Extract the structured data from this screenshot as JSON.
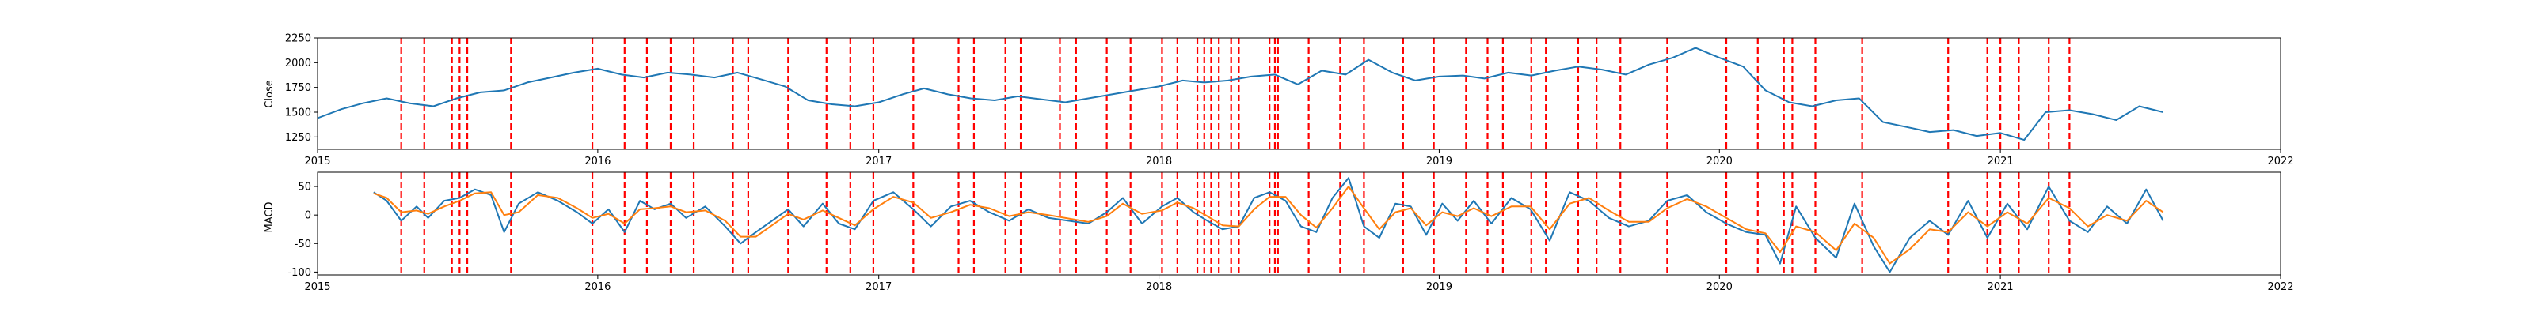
{
  "chart_data": [
    {
      "type": "line",
      "ylabel": "Close",
      "xlim": [
        "2015-01-01",
        "2022-01-01"
      ],
      "ylim": [
        1125,
        2250
      ],
      "yticks": [
        1250,
        1500,
        1750,
        2000,
        2250
      ],
      "xticks": [
        "2015",
        "2016",
        "2017",
        "2018",
        "2019",
        "2020",
        "2021",
        "2022"
      ],
      "grid": false,
      "series": [
        {
          "color": "#1f77b4",
          "x": [
            "2015-01-01",
            "2015-02-01",
            "2015-03-01",
            "2015-04-01",
            "2015-05-01",
            "2015-06-01",
            "2015-07-01",
            "2015-08-01",
            "2015-09-01",
            "2015-10-01",
            "2015-11-01",
            "2015-12-01",
            "2016-01-01",
            "2016-02-01",
            "2016-03-01",
            "2016-04-01",
            "2016-05-01",
            "2016-06-01",
            "2016-07-01",
            "2016-08-01",
            "2016-09-01",
            "2016-10-01",
            "2016-11-01",
            "2016-12-01",
            "2017-01-01",
            "2017-02-01",
            "2017-03-01",
            "2017-04-01",
            "2017-05-01",
            "2017-06-01",
            "2017-07-01",
            "2017-08-01",
            "2017-09-01",
            "2017-10-01",
            "2017-11-01",
            "2017-12-01",
            "2018-01-01",
            "2018-02-01",
            "2018-03-01",
            "2018-04-01",
            "2018-05-01",
            "2018-06-01",
            "2018-07-01",
            "2018-08-01",
            "2018-09-01",
            "2018-10-01",
            "2018-11-01",
            "2018-12-01",
            "2019-01-01",
            "2019-02-01",
            "2019-03-01",
            "2019-04-01",
            "2019-05-01",
            "2019-06-01",
            "2019-07-01",
            "2019-08-01",
            "2019-09-01",
            "2019-10-01",
            "2019-11-01",
            "2019-12-01",
            "2020-01-01",
            "2020-02-01",
            "2020-03-01",
            "2020-04-01",
            "2020-05-01",
            "2020-06-01",
            "2020-07-01",
            "2020-08-01",
            "2020-09-01",
            "2020-10-01",
            "2020-11-01",
            "2020-12-01",
            "2021-01-01",
            "2021-02-01",
            "2021-03-01",
            "2021-04-01",
            "2021-05-01",
            "2021-06-01",
            "2021-07-01",
            "2021-08-01"
          ],
          "y": [
            1440,
            1530,
            1590,
            1640,
            1590,
            1560,
            1640,
            1700,
            1720,
            1800,
            1850,
            1900,
            1940,
            1880,
            1850,
            1900,
            1880,
            1850,
            1900,
            1830,
            1760,
            1620,
            1580,
            1560,
            1600,
            1680,
            1740,
            1680,
            1640,
            1620,
            1660,
            1630,
            1600,
            1640,
            1680,
            1720,
            1760,
            1820,
            1800,
            1820,
            1860,
            1880,
            1780,
            1920,
            1880,
            2030,
            1900,
            1820,
            1860,
            1870,
            1840,
            1900,
            1870,
            1920,
            1960,
            1930,
            1880,
            1980,
            2050,
            2150,
            2050,
            1960,
            1720,
            1600,
            1560,
            1620,
            1640,
            1400,
            1350,
            1300,
            1320,
            1260,
            1290,
            1220,
            1500,
            1520,
            1480,
            1420,
            1560,
            1500
          ]
        }
      ],
      "vlines": [
        "2015-04-20",
        "2015-05-20",
        "2015-06-25",
        "2015-07-05",
        "2015-07-15",
        "2015-09-10",
        "2015-12-25",
        "2016-02-05",
        "2016-03-05",
        "2016-04-05",
        "2016-05-05",
        "2016-06-25",
        "2016-07-15",
        "2016-09-05",
        "2016-10-25",
        "2016-11-25",
        "2016-12-25",
        "2017-02-15",
        "2017-04-15",
        "2017-05-05",
        "2017-06-15",
        "2017-07-05",
        "2017-08-25",
        "2017-09-15",
        "2017-10-25",
        "2017-11-25",
        "2018-01-05",
        "2018-01-25",
        "2018-02-20",
        "2018-03-01",
        "2018-03-10",
        "2018-03-20",
        "2018-04-05",
        "2018-04-15",
        "2018-05-25",
        "2018-06-01",
        "2018-06-05",
        "2018-07-15",
        "2018-08-25",
        "2018-09-25",
        "2018-11-15",
        "2018-12-25",
        "2019-02-05",
        "2019-03-05",
        "2019-03-25",
        "2019-05-01",
        "2019-05-20",
        "2019-07-01",
        "2019-07-25",
        "2019-08-25",
        "2019-10-25",
        "2020-01-10",
        "2020-02-20",
        "2020-03-25",
        "2020-04-05",
        "2020-05-05",
        "2020-07-05",
        "2020-10-25",
        "2020-12-15",
        "2021-01-01",
        "2021-01-25",
        "2021-03-05",
        "2021-04-01"
      ],
      "vline_color": "#ff0000"
    },
    {
      "type": "line",
      "ylabel": "MACD",
      "xlim": [
        "2015-01-01",
        "2022-01-01"
      ],
      "ylim": [
        -105,
        75
      ],
      "yticks": [
        -100,
        -50,
        0,
        50
      ],
      "xticks": [
        "2015",
        "2016",
        "2017",
        "2018",
        "2019",
        "2020",
        "2021",
        "2022"
      ],
      "grid": false,
      "series": [
        {
          "color": "#1f77b4",
          "x": [
            "2015-03-15",
            "2015-04-01",
            "2015-04-20",
            "2015-05-10",
            "2015-05-25",
            "2015-06-15",
            "2015-07-05",
            "2015-07-25",
            "2015-08-15",
            "2015-09-01",
            "2015-09-20",
            "2015-10-15",
            "2015-11-10",
            "2015-12-05",
            "2015-12-25",
            "2016-01-15",
            "2016-02-05",
            "2016-02-25",
            "2016-03-15",
            "2016-04-05",
            "2016-04-25",
            "2016-05-20",
            "2016-06-15",
            "2016-07-05",
            "2016-07-25",
            "2016-08-15",
            "2016-09-05",
            "2016-09-25",
            "2016-10-20",
            "2016-11-10",
            "2016-12-01",
            "2016-12-25",
            "2017-01-20",
            "2017-02-15",
            "2017-03-10",
            "2017-04-05",
            "2017-04-30",
            "2017-05-25",
            "2017-06-20",
            "2017-07-15",
            "2017-08-10",
            "2017-09-05",
            "2017-10-01",
            "2017-10-25",
            "2017-11-15",
            "2017-12-10",
            "2018-01-05",
            "2018-01-25",
            "2018-02-15",
            "2018-03-05",
            "2018-03-25",
            "2018-04-15",
            "2018-05-05",
            "2018-05-25",
            "2018-06-15",
            "2018-07-05",
            "2018-07-25",
            "2018-08-15",
            "2018-09-05",
            "2018-09-25",
            "2018-10-15",
            "2018-11-05",
            "2018-11-25",
            "2018-12-15",
            "2019-01-05",
            "2019-01-25",
            "2019-02-15",
            "2019-03-10",
            "2019-04-05",
            "2019-04-30",
            "2019-05-25",
            "2019-06-20",
            "2019-07-15",
            "2019-08-10",
            "2019-09-05",
            "2019-10-01",
            "2019-10-25",
            "2019-11-20",
            "2019-12-15",
            "2020-01-10",
            "2020-02-05",
            "2020-03-01",
            "2020-03-20",
            "2020-04-10",
            "2020-05-05",
            "2020-06-01",
            "2020-06-25",
            "2020-07-20",
            "2020-08-10",
            "2020-09-05",
            "2020-10-01",
            "2020-10-25",
            "2020-11-20",
            "2020-12-15",
            "2021-01-10",
            "2021-02-05",
            "2021-03-05",
            "2021-04-01",
            "2021-04-25",
            "2021-05-20",
            "2021-06-15",
            "2021-07-10",
            "2021-08-01"
          ],
          "y": [
            40,
            25,
            -10,
            15,
            -5,
            25,
            30,
            45,
            35,
            -30,
            20,
            40,
            25,
            5,
            -15,
            10,
            -30,
            25,
            10,
            20,
            -5,
            15,
            -20,
            -50,
            -30,
            -10,
            10,
            -20,
            20,
            -15,
            -25,
            25,
            40,
            10,
            -20,
            15,
            25,
            5,
            -10,
            10,
            -5,
            -10,
            -15,
            5,
            30,
            -15,
            15,
            30,
            5,
            -10,
            -25,
            -20,
            30,
            40,
            25,
            -20,
            -30,
            30,
            65,
            -20,
            -40,
            20,
            15,
            -35,
            20,
            -10,
            25,
            -15,
            30,
            10,
            -45,
            40,
            25,
            -5,
            -20,
            -10,
            25,
            35,
            5,
            -15,
            -30,
            -35,
            -85,
            15,
            -40,
            -75,
            20,
            -55,
            -100,
            -40,
            -10,
            -35,
            25,
            -40,
            20,
            -25,
            50,
            -10,
            -30,
            15,
            -15,
            45,
            -10
          ]
        },
        {
          "color": "#ff7f0e",
          "x": [
            "2015-03-15",
            "2015-04-01",
            "2015-04-20",
            "2015-05-10",
            "2015-05-25",
            "2015-06-15",
            "2015-07-05",
            "2015-07-25",
            "2015-08-15",
            "2015-09-01",
            "2015-09-20",
            "2015-10-15",
            "2015-11-10",
            "2015-12-05",
            "2015-12-25",
            "2016-01-15",
            "2016-02-05",
            "2016-02-25",
            "2016-03-15",
            "2016-04-05",
            "2016-04-25",
            "2016-05-20",
            "2016-06-15",
            "2016-07-05",
            "2016-07-25",
            "2016-08-15",
            "2016-09-05",
            "2016-09-25",
            "2016-10-20",
            "2016-11-10",
            "2016-12-01",
            "2016-12-25",
            "2017-01-20",
            "2017-02-15",
            "2017-03-10",
            "2017-04-05",
            "2017-04-30",
            "2017-05-25",
            "2017-06-20",
            "2017-07-15",
            "2017-08-10",
            "2017-09-05",
            "2017-10-01",
            "2017-10-25",
            "2017-11-15",
            "2017-12-10",
            "2018-01-05",
            "2018-01-25",
            "2018-02-15",
            "2018-03-05",
            "2018-03-25",
            "2018-04-15",
            "2018-05-05",
            "2018-05-25",
            "2018-06-15",
            "2018-07-05",
            "2018-07-25",
            "2018-08-15",
            "2018-09-05",
            "2018-09-25",
            "2018-10-15",
            "2018-11-05",
            "2018-11-25",
            "2018-12-15",
            "2019-01-05",
            "2019-01-25",
            "2019-02-15",
            "2019-03-10",
            "2019-04-05",
            "2019-04-30",
            "2019-05-25",
            "2019-06-20",
            "2019-07-15",
            "2019-08-10",
            "2019-09-05",
            "2019-10-01",
            "2019-10-25",
            "2019-11-20",
            "2019-12-15",
            "2020-01-10",
            "2020-02-05",
            "2020-03-01",
            "2020-03-20",
            "2020-04-10",
            "2020-05-05",
            "2020-06-01",
            "2020-06-25",
            "2020-07-20",
            "2020-08-10",
            "2020-09-05",
            "2020-10-01",
            "2020-10-25",
            "2020-11-20",
            "2020-12-15",
            "2021-01-10",
            "2021-02-05",
            "2021-03-05",
            "2021-04-01",
            "2021-04-25",
            "2021-05-20",
            "2021-06-15",
            "2021-07-10",
            "2021-08-01"
          ],
          "y": [
            38,
            30,
            5,
            8,
            2,
            15,
            25,
            38,
            40,
            0,
            5,
            35,
            30,
            12,
            -5,
            2,
            -15,
            10,
            12,
            15,
            5,
            8,
            -10,
            -38,
            -38,
            -18,
            2,
            -8,
            8,
            -5,
            -18,
            10,
            32,
            22,
            -5,
            5,
            18,
            12,
            -2,
            5,
            0,
            -6,
            -12,
            -2,
            20,
            2,
            8,
            22,
            12,
            -2,
            -18,
            -20,
            10,
            32,
            32,
            0,
            -22,
            12,
            50,
            12,
            -25,
            5,
            12,
            -18,
            5,
            -2,
            12,
            -2,
            15,
            15,
            -25,
            20,
            30,
            8,
            -12,
            -12,
            12,
            28,
            15,
            -5,
            -25,
            -32,
            -65,
            -20,
            -30,
            -62,
            -15,
            -40,
            -85,
            -60,
            -25,
            -30,
            5,
            -20,
            5,
            -15,
            30,
            12,
            -20,
            0,
            -10,
            25,
            5
          ]
        }
      ],
      "vlines": [
        "2015-04-20",
        "2015-05-20",
        "2015-06-25",
        "2015-07-05",
        "2015-07-15",
        "2015-09-10",
        "2015-12-25",
        "2016-02-05",
        "2016-03-05",
        "2016-04-05",
        "2016-05-05",
        "2016-06-25",
        "2016-07-15",
        "2016-09-05",
        "2016-10-25",
        "2016-11-25",
        "2016-12-25",
        "2017-02-15",
        "2017-04-15",
        "2017-05-05",
        "2017-06-15",
        "2017-07-05",
        "2017-08-25",
        "2017-09-15",
        "2017-10-25",
        "2017-11-25",
        "2018-01-05",
        "2018-01-25",
        "2018-02-20",
        "2018-03-01",
        "2018-03-10",
        "2018-03-20",
        "2018-04-05",
        "2018-04-15",
        "2018-05-25",
        "2018-06-01",
        "2018-06-05",
        "2018-07-15",
        "2018-08-25",
        "2018-09-25",
        "2018-11-15",
        "2018-12-25",
        "2019-02-05",
        "2019-03-05",
        "2019-03-25",
        "2019-05-01",
        "2019-05-20",
        "2019-07-01",
        "2019-07-25",
        "2019-08-25",
        "2019-10-25",
        "2020-01-10",
        "2020-02-20",
        "2020-03-25",
        "2020-04-05",
        "2020-05-05",
        "2020-07-05",
        "2020-10-25",
        "2020-12-15",
        "2021-01-01",
        "2021-01-25",
        "2021-03-05",
        "2021-04-01"
      ],
      "vline_color": "#ff0000"
    }
  ]
}
